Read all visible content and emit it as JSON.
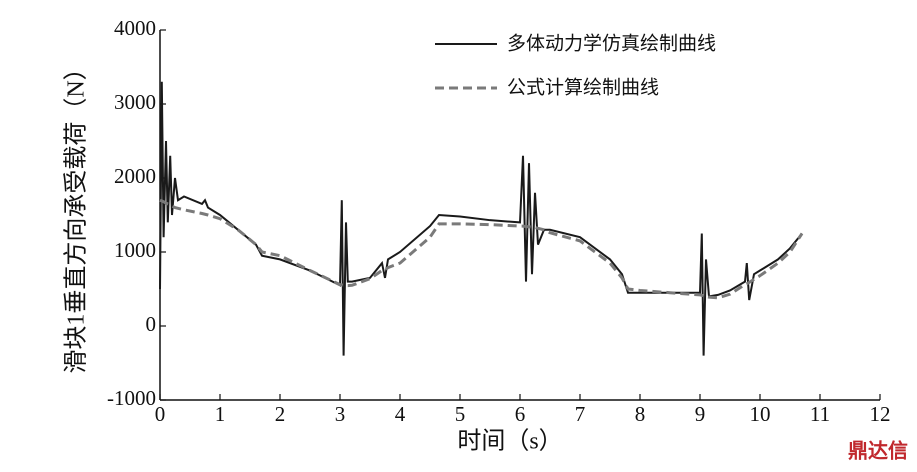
{
  "chart_data": {
    "type": "line",
    "y_label": "滑块1垂直方向承受载荷（N）",
    "x_label": "时间（s）",
    "watermark": "鼎达信",
    "x": [
      0,
      0.03,
      0.06,
      0.1,
      0.13,
      0.17,
      0.2,
      0.25,
      0.3,
      0.4,
      0.7,
      0.75,
      0.8,
      1.0,
      1.3,
      1.6,
      1.7,
      2.0,
      2.5,
      3.0,
      3.03,
      3.06,
      3.1,
      3.13,
      3.2,
      3.5,
      3.7,
      3.75,
      3.8,
      4.0,
      4.5,
      4.65,
      5.0,
      5.5,
      6.0,
      6.05,
      6.1,
      6.15,
      6.2,
      6.25,
      6.3,
      6.4,
      6.5,
      7.0,
      7.5,
      7.7,
      7.8,
      8.0,
      8.5,
      9.0,
      9.03,
      9.06,
      9.1,
      9.15,
      9.3,
      9.5,
      9.75,
      9.78,
      9.82,
      9.9,
      10.0,
      10.3,
      10.5,
      10.7
    ],
    "series": [
      {
        "name": "多体动力学仿真绘制曲线",
        "color": "#1a1a1a",
        "dash": false,
        "values": [
          500,
          3300,
          1200,
          2500,
          1400,
          2300,
          1500,
          2000,
          1700,
          1750,
          1650,
          1700,
          1600,
          1500,
          1300,
          1100,
          950,
          900,
          750,
          550,
          1700,
          -400,
          1400,
          600,
          600,
          650,
          850,
          650,
          900,
          1000,
          1350,
          1500,
          1480,
          1430,
          1400,
          2300,
          600,
          2200,
          700,
          1800,
          1100,
          1300,
          1300,
          1200,
          900,
          700,
          450,
          450,
          450,
          450,
          1250,
          -400,
          900,
          400,
          420,
          480,
          600,
          850,
          350,
          700,
          750,
          900,
          1050,
          1250
        ]
      },
      {
        "name": "公式计算绘制曲线",
        "color": "#7a7a7a",
        "dash": true,
        "values": [
          1700,
          1690,
          1680,
          1660,
          1650,
          1640,
          1620,
          1600,
          1590,
          1570,
          1520,
          1510,
          1500,
          1450,
          1300,
          1100,
          1000,
          950,
          750,
          560,
          555,
          550,
          545,
          545,
          550,
          640,
          750,
          760,
          790,
          850,
          1200,
          1380,
          1380,
          1370,
          1350,
          1350,
          1345,
          1340,
          1335,
          1330,
          1320,
          1300,
          1260,
          1150,
          850,
          650,
          500,
          480,
          450,
          420,
          415,
          410,
          400,
          390,
          380,
          430,
          560,
          570,
          590,
          630,
          680,
          850,
          1000,
          1250
        ]
      }
    ],
    "xlim": [
      0,
      12
    ],
    "xticks": [
      0,
      1,
      2,
      3,
      4,
      5,
      6,
      7,
      8,
      9,
      10,
      11,
      12
    ],
    "ylim": [
      -1000,
      4000
    ],
    "yticks": [
      -1000,
      0,
      1000,
      2000,
      3000,
      4000
    ],
    "legend": "upper-right"
  }
}
